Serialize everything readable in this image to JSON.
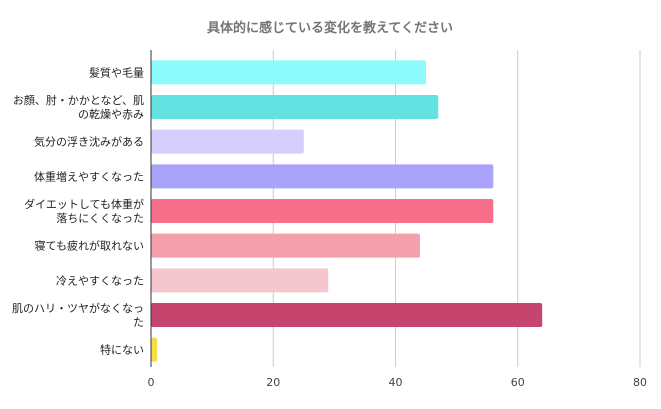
{
  "chart_data": {
    "type": "bar",
    "orientation": "horizontal",
    "title": "具体的に感じている変化を教えてください",
    "xlabel": "",
    "ylabel": "",
    "xlim": [
      0,
      80
    ],
    "x_ticks": [
      0,
      20,
      40,
      60,
      80
    ],
    "grid": true,
    "legend": "none",
    "categories": [
      {
        "lines": [
          "髪質や毛量"
        ],
        "value": 45
      },
      {
        "lines": [
          "お顔、肘・かかとなど、肌",
          "の乾燥や赤み"
        ],
        "value": 47
      },
      {
        "lines": [
          "気分の浮き沈みがある"
        ],
        "value": 25
      },
      {
        "lines": [
          "体重増えやすくなった"
        ],
        "value": 56
      },
      {
        "lines": [
          "ダイエットしても体重が",
          "落ちにくくなった"
        ],
        "value": 56
      },
      {
        "lines": [
          "寝ても疲れが取れない"
        ],
        "value": 44
      },
      {
        "lines": [
          "冷えやすくなった"
        ],
        "value": 29
      },
      {
        "lines": [
          "肌のハリ・ツヤがなくなっ",
          "た"
        ],
        "value": 64
      },
      {
        "lines": [
          "特にない"
        ],
        "value": 1
      }
    ],
    "colors": [
      "#8dfbfb",
      "#64e2e2",
      "#d4cffc",
      "#a9a3fa",
      "#f86f8c",
      "#f49fab",
      "#f4c7ce",
      "#c5456f",
      "#f8dc43"
    ]
  }
}
